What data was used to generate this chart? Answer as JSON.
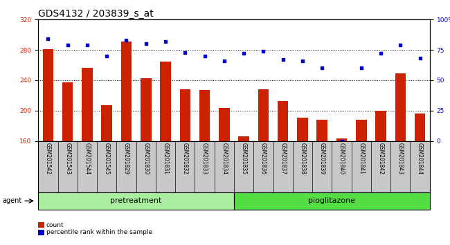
{
  "title": "GDS4132 / 203839_s_at",
  "categories": [
    "GSM201542",
    "GSM201543",
    "GSM201544",
    "GSM201545",
    "GSM201829",
    "GSM201830",
    "GSM201831",
    "GSM201832",
    "GSM201833",
    "GSM201834",
    "GSM201835",
    "GSM201836",
    "GSM201837",
    "GSM201838",
    "GSM201839",
    "GSM201840",
    "GSM201841",
    "GSM201842",
    "GSM201843",
    "GSM201844"
  ],
  "bar_values": [
    281,
    237,
    256,
    207,
    291,
    243,
    265,
    228,
    227,
    203,
    166,
    228,
    213,
    191,
    188,
    163,
    188,
    200,
    249,
    196
  ],
  "percentile_values": [
    84,
    79,
    79,
    70,
    83,
    80,
    82,
    73,
    70,
    66,
    72,
    74,
    67,
    66,
    60,
    0,
    60,
    72,
    79,
    68
  ],
  "group1_label": "pretreatment",
  "group2_label": "pioglitazone",
  "group1_count": 10,
  "group2_count": 10,
  "ylim_left": [
    160,
    320
  ],
  "ylim_right": [
    0,
    100
  ],
  "yticks_left": [
    160,
    200,
    240,
    280,
    320
  ],
  "yticks_right": [
    0,
    25,
    50,
    75,
    100
  ],
  "ytick_labels_right": [
    "0",
    "25",
    "50",
    "75",
    "100%"
  ],
  "bar_color": "#cc2200",
  "dot_color": "#0000cc",
  "bg_color": "#c8c8c8",
  "group1_color": "#aaeea0",
  "group2_color": "#55dd44",
  "agent_label": "agent",
  "legend_bar_label": "count",
  "legend_dot_label": "percentile rank within the sample",
  "title_fontsize": 10,
  "tick_fontsize": 6.5,
  "label_fontsize": 7,
  "group_fontsize": 8
}
